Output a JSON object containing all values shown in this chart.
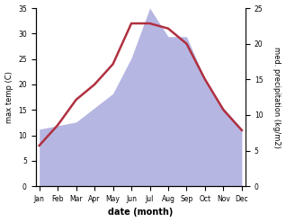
{
  "months": [
    "Jan",
    "Feb",
    "Mar",
    "Apr",
    "May",
    "Jun",
    "Jul",
    "Aug",
    "Sep",
    "Oct",
    "Nov",
    "Dec"
  ],
  "month_positions": [
    0,
    1,
    2,
    3,
    4,
    5,
    6,
    7,
    8,
    9,
    10,
    11
  ],
  "max_temp": [
    8,
    12,
    17,
    20,
    24,
    32,
    32,
    31,
    28,
    21,
    15,
    11
  ],
  "precipitation": [
    8,
    8.5,
    9,
    11,
    13,
    18,
    25,
    21,
    21,
    15,
    11,
    8
  ],
  "temp_color": "#b03040",
  "precip_fill_color": "#aaaadd",
  "precip_fill_alpha": 0.85,
  "temp_ylim": [
    0,
    35
  ],
  "precip_ylim": [
    0,
    25
  ],
  "temp_yticks": [
    0,
    5,
    10,
    15,
    20,
    25,
    30,
    35
  ],
  "precip_yticks": [
    0,
    5,
    10,
    15,
    20,
    25
  ],
  "xlabel": "date (month)",
  "ylabel_left": "max temp (C)",
  "ylabel_right": "med. precipitation (kg/m2)",
  "line_width": 1.8,
  "tick_fontsize": 5.5,
  "label_fontsize": 6,
  "xlabel_fontsize": 7
}
